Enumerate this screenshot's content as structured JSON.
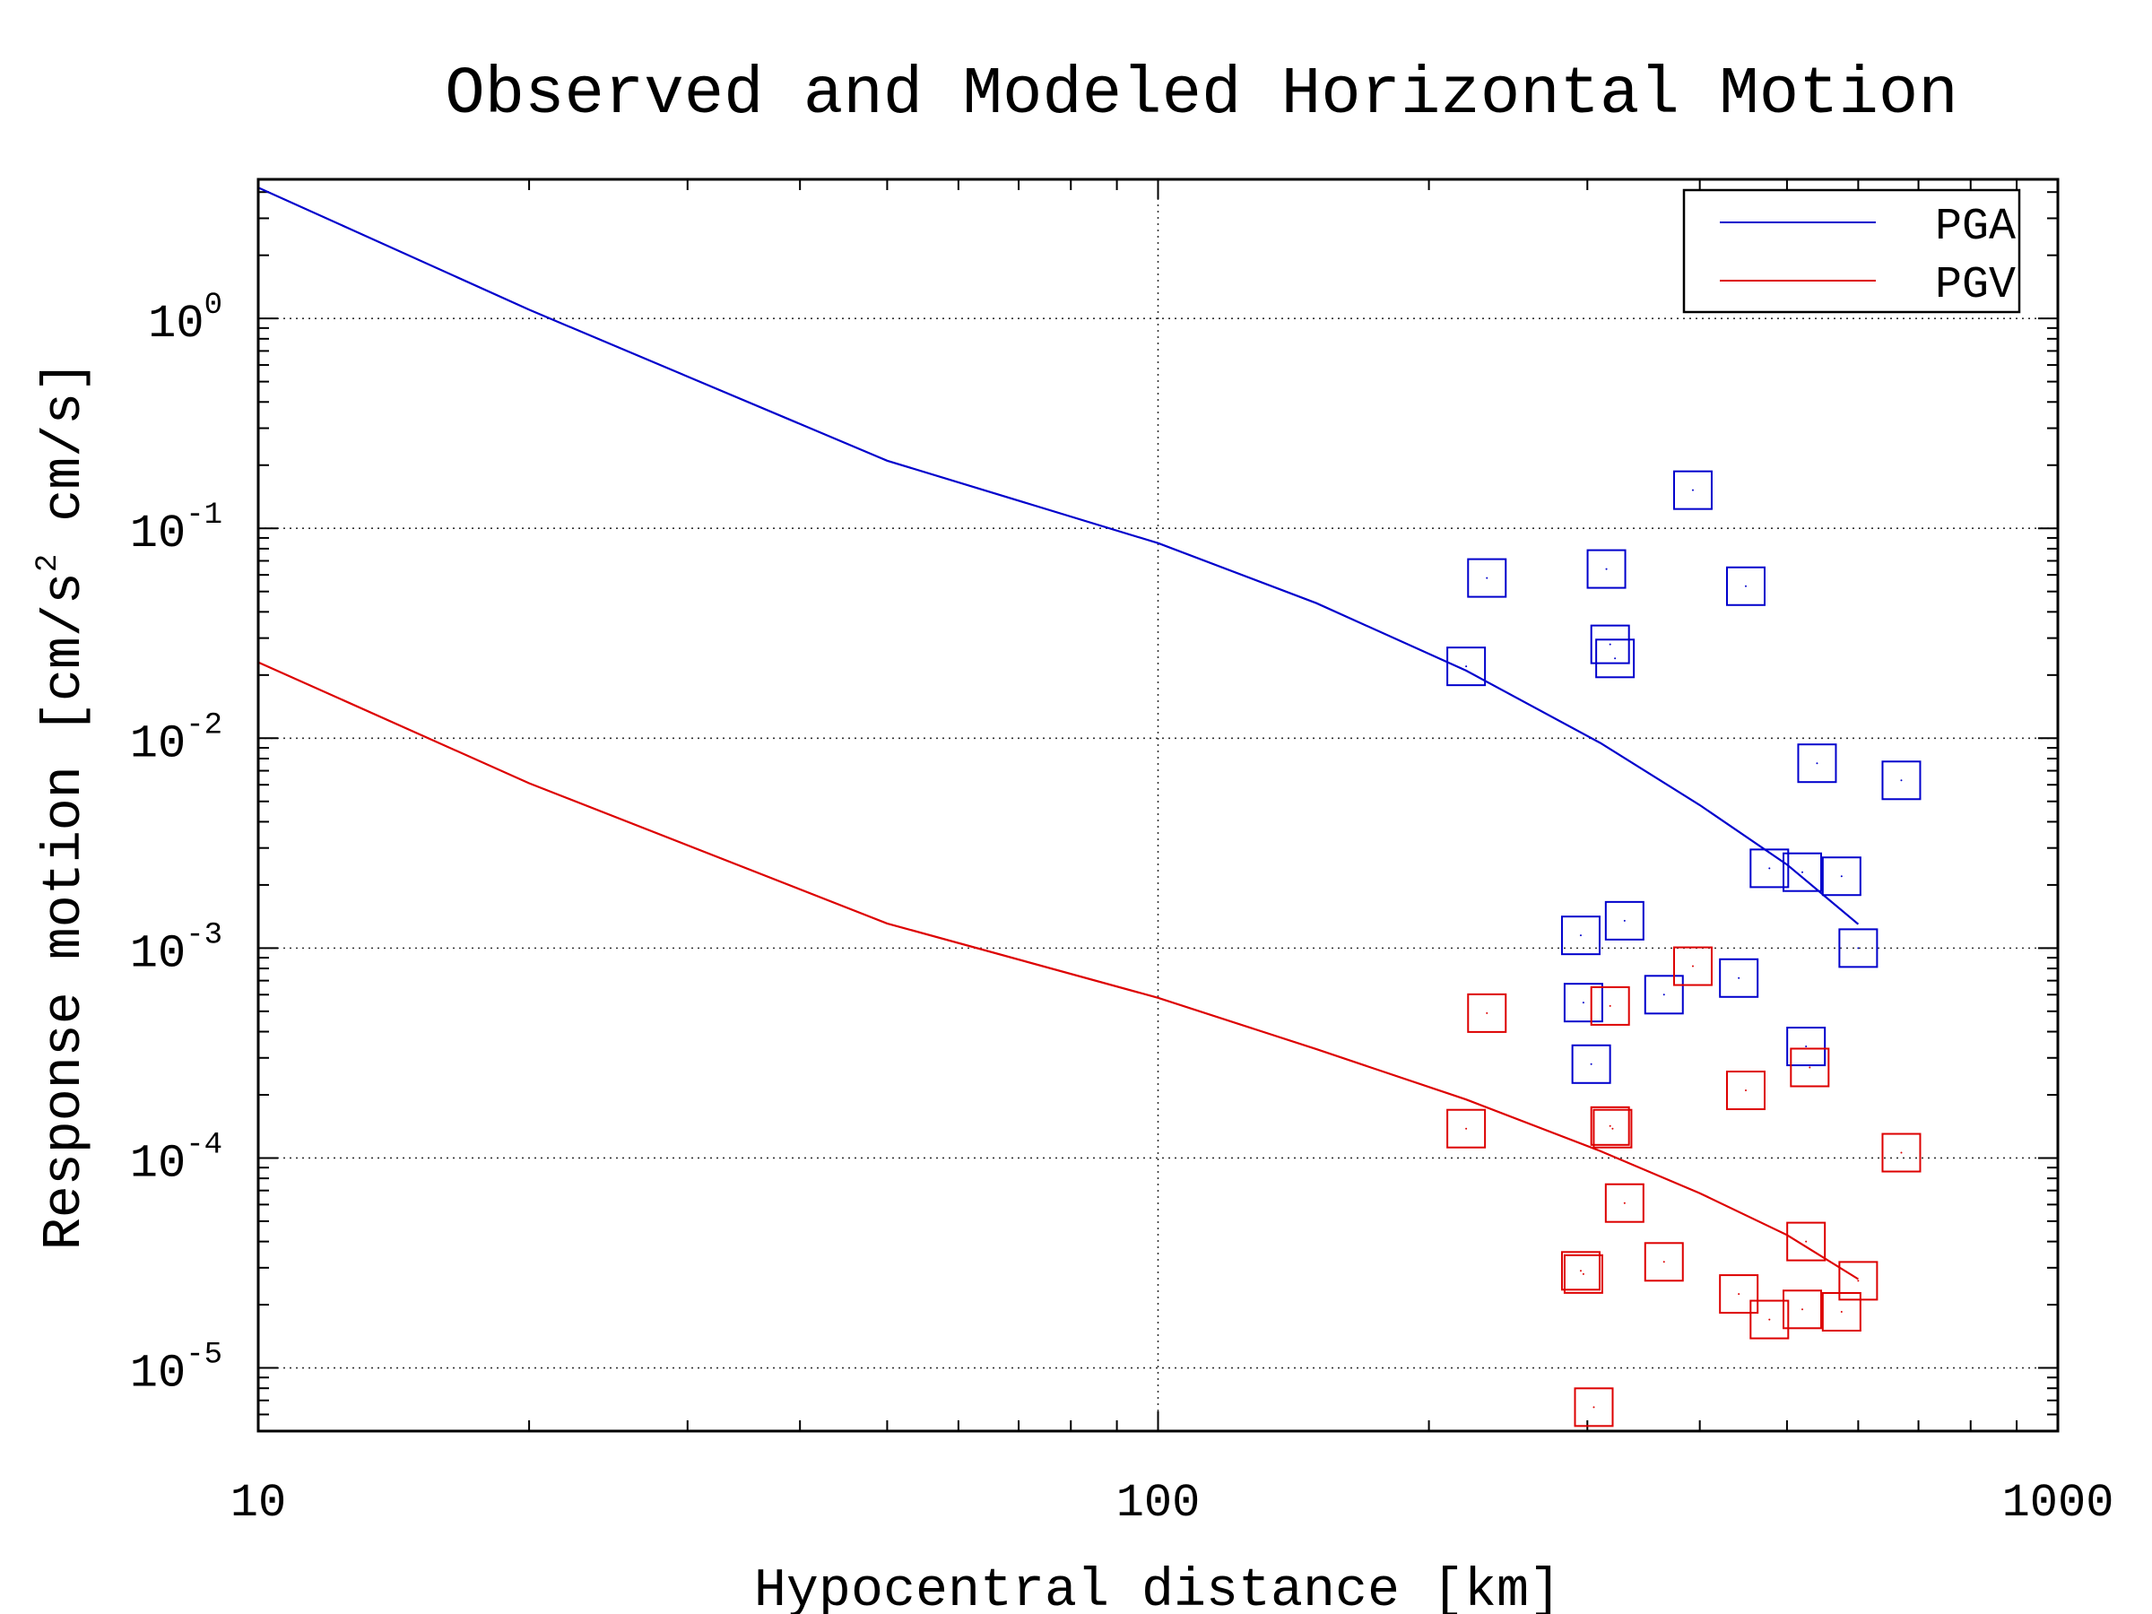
{
  "chart_data": {
    "type": "scatter",
    "title": "Observed and Modeled Horizontal Motion",
    "xlabel": "Hypocentral distance [km]",
    "ylabel_parts": [
      "Response motion [cm/s",
      "2",
      " cm/s]"
    ],
    "x_scale": "log",
    "y_scale": "log",
    "xlim": [
      10,
      1000
    ],
    "ylim": [
      5e-06,
      4.6
    ],
    "x_ticks": [
      {
        "value": 10,
        "label": "10"
      },
      {
        "value": 100,
        "label": "100"
      },
      {
        "value": 1000,
        "label": "1000"
      }
    ],
    "y_ticks": [
      {
        "value": 1,
        "base": "10",
        "exp": "0"
      },
      {
        "value": 0.1,
        "base": "10",
        "exp": "-1"
      },
      {
        "value": 0.01,
        "base": "10",
        "exp": "-2"
      },
      {
        "value": 0.001,
        "base": "10",
        "exp": "-3"
      },
      {
        "value": 0.0001,
        "base": "10",
        "exp": "-4"
      },
      {
        "value": 1e-05,
        "base": "10",
        "exp": "-5"
      }
    ],
    "grid": "dotted at major ticks",
    "legend_position": "top-right",
    "series": [
      {
        "name": "PGA",
        "color": "#0000cc",
        "model_line": [
          [
            10,
            4.2
          ],
          [
            20,
            1.1
          ],
          [
            50,
            0.21
          ],
          [
            100,
            0.085
          ],
          [
            150,
            0.044
          ],
          [
            220,
            0.021
          ],
          [
            310,
            0.0095
          ],
          [
            400,
            0.0048
          ],
          [
            500,
            0.0025
          ],
          [
            600,
            0.0013
          ]
        ],
        "observed": [
          [
            220,
            0.022
          ],
          [
            232,
            0.058
          ],
          [
            315,
            0.064
          ],
          [
            318,
            0.028
          ],
          [
            322,
            0.024
          ],
          [
            393,
            0.152
          ],
          [
            450,
            0.053
          ],
          [
            540,
            0.0076
          ],
          [
            670,
            0.0063
          ],
          [
            478,
            0.0024
          ],
          [
            520,
            0.0023
          ],
          [
            575,
            0.0022
          ],
          [
            600,
            0.001
          ],
          [
            295,
            0.00115
          ],
          [
            330,
            0.00135
          ],
          [
            297,
            0.00055
          ],
          [
            365,
            0.0006
          ],
          [
            442,
            0.00072
          ],
          [
            303,
            0.00028
          ],
          [
            525,
            0.00034
          ]
        ]
      },
      {
        "name": "PGV",
        "color": "#dd0000",
        "model_line": [
          [
            10,
            0.023
          ],
          [
            20,
            0.0061
          ],
          [
            50,
            0.00131
          ],
          [
            100,
            0.00058
          ],
          [
            150,
            0.00033
          ],
          [
            220,
            0.00019
          ],
          [
            310,
            0.000108
          ],
          [
            400,
            6.8e-05
          ],
          [
            500,
            4.3e-05
          ],
          [
            600,
            2.65e-05
          ]
        ],
        "observed": [
          [
            232,
            0.00049
          ],
          [
            393,
            0.00082
          ],
          [
            318,
            0.00053
          ],
          [
            220,
            0.000138
          ],
          [
            318,
            0.000142
          ],
          [
            320,
            0.000138
          ],
          [
            450,
            0.00021
          ],
          [
            530,
            0.00027
          ],
          [
            670,
            0.000106
          ],
          [
            330,
            6.1e-05
          ],
          [
            525,
            4e-05
          ],
          [
            295,
            2.9e-05
          ],
          [
            297,
            2.8e-05
          ],
          [
            365,
            3.2e-05
          ],
          [
            442,
            2.25e-05
          ],
          [
            478,
            1.7e-05
          ],
          [
            520,
            1.9e-05
          ],
          [
            575,
            1.85e-05
          ],
          [
            600,
            2.6e-05
          ],
          [
            305,
            6.5e-06
          ]
        ]
      }
    ]
  }
}
